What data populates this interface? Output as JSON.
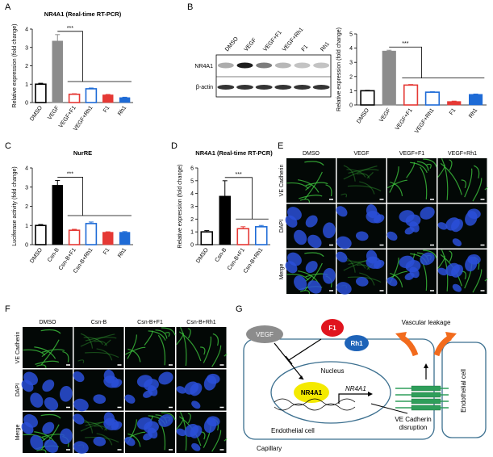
{
  "panel_labels": [
    "A",
    "B",
    "C",
    "D",
    "E",
    "F",
    "G"
  ],
  "chart_data": [
    {
      "type": "bar",
      "title": "NR4A1 (Real-time RT-PCR)",
      "y_label": "Relative expression (fold change)",
      "categories": [
        "DMSO",
        "VEGF",
        "VEGF+F1",
        "VEGF+Rh1",
        "F1",
        "Rh1"
      ],
      "values": [
        1.0,
        3.35,
        0.45,
        0.75,
        0.42,
        0.27
      ],
      "errors": [
        0.05,
        0.35,
        0.03,
        0.04,
        0.02,
        0.02
      ],
      "colors": [
        "#000000",
        "#8c8c8c",
        "#e53935",
        "#1e6bd6",
        "#e53935",
        "#1e6bd6"
      ],
      "filled": [
        false,
        true,
        false,
        false,
        true,
        true
      ],
      "ylim": [
        0,
        4
      ],
      "yticks": [
        0,
        1,
        2,
        3,
        4
      ],
      "annotation": "***"
    },
    {
      "type": "bar",
      "y_label": "Relative expression (fold change)",
      "categories": [
        "DMSO",
        "VEGF",
        "VEGF+F1",
        "VEGF+Rh1",
        "F1",
        "Rh1"
      ],
      "values": [
        1.0,
        3.8,
        1.4,
        0.9,
        0.25,
        0.75
      ],
      "errors": [
        0.03,
        0.05,
        0.04,
        0.03,
        0.02,
        0.02
      ],
      "colors": [
        "#000000",
        "#8c8c8c",
        "#e53935",
        "#1e6bd6",
        "#e53935",
        "#1e6bd6"
      ],
      "filled": [
        false,
        true,
        false,
        false,
        true,
        true
      ],
      "ylim": [
        0,
        5
      ],
      "yticks": [
        0,
        1,
        2,
        3,
        4,
        5
      ],
      "annotation": "***"
    },
    {
      "type": "bar",
      "title": "NurRE",
      "y_label": "Luciferase activity (fold change)",
      "categories": [
        "DMSO",
        "Csn-B",
        "Csn-B+F1",
        "Csn-B+Rh1",
        "F1",
        "Rh1"
      ],
      "values": [
        1.0,
        3.1,
        0.75,
        1.1,
        0.65,
        0.65
      ],
      "errors": [
        0.05,
        0.25,
        0.05,
        0.08,
        0.02,
        0.03
      ],
      "colors": [
        "#000000",
        "#000000",
        "#e53935",
        "#1e6bd6",
        "#e53935",
        "#1e6bd6"
      ],
      "filled": [
        false,
        true,
        false,
        false,
        true,
        true
      ],
      "ylim": [
        0,
        4
      ],
      "yticks": [
        0,
        1,
        2,
        3,
        4
      ],
      "annotation": "***"
    },
    {
      "type": "bar",
      "title": "NR4A1 (Real-time RT-PCR)",
      "y_label": "Relative expression (fold change)",
      "categories": [
        "DMSO",
        "Csn-B",
        "Csn-B+F1",
        "Csn-B+Rh1"
      ],
      "values": [
        1.0,
        3.8,
        1.25,
        1.4
      ],
      "errors": [
        0.1,
        1.2,
        0.15,
        0.1
      ],
      "colors": [
        "#000000",
        "#000000",
        "#e53935",
        "#1e6bd6"
      ],
      "filled": [
        false,
        true,
        false,
        false
      ],
      "ylim": [
        0,
        6
      ],
      "yticks": [
        0,
        1,
        2,
        3,
        4,
        5,
        6
      ],
      "annotation": "***"
    }
  ],
  "western_blot": {
    "lanes": [
      "DMSO",
      "VEGF",
      "VEGF+F1",
      "VEGF+Rh1",
      "F1",
      "Rh1"
    ],
    "rows": [
      "NR4A1",
      "β-actin"
    ]
  },
  "panel_e": {
    "columns": [
      "DMSO",
      "VEGF",
      "VEGF+F1",
      "VEGF+Rh1"
    ],
    "rows": [
      "VE Cadherin",
      "DAPI",
      "Merge"
    ]
  },
  "panel_f": {
    "columns": [
      "DMSO",
      "Csn-B",
      "Csn-B+F1",
      "Csn-B+Rh1"
    ],
    "rows": [
      "VE Cadherin",
      "DAPI",
      "Merge"
    ]
  },
  "diagram": {
    "vegf": "VEGF",
    "f1": "F1",
    "rh1": "Rh1",
    "nucleus": "Nucleus",
    "nr4a1_protein": "NR4A1",
    "nr4a1_gene": "NR4A1",
    "endothelial_cell_left": "Endothelial cell",
    "capillary": "Capillary",
    "vascular_leakage": "Vascular leakage",
    "ve_cadherin_disruption": [
      "VE Cadherin",
      "disruption"
    ],
    "endothelial_cell_right": "Endothelial cell"
  }
}
